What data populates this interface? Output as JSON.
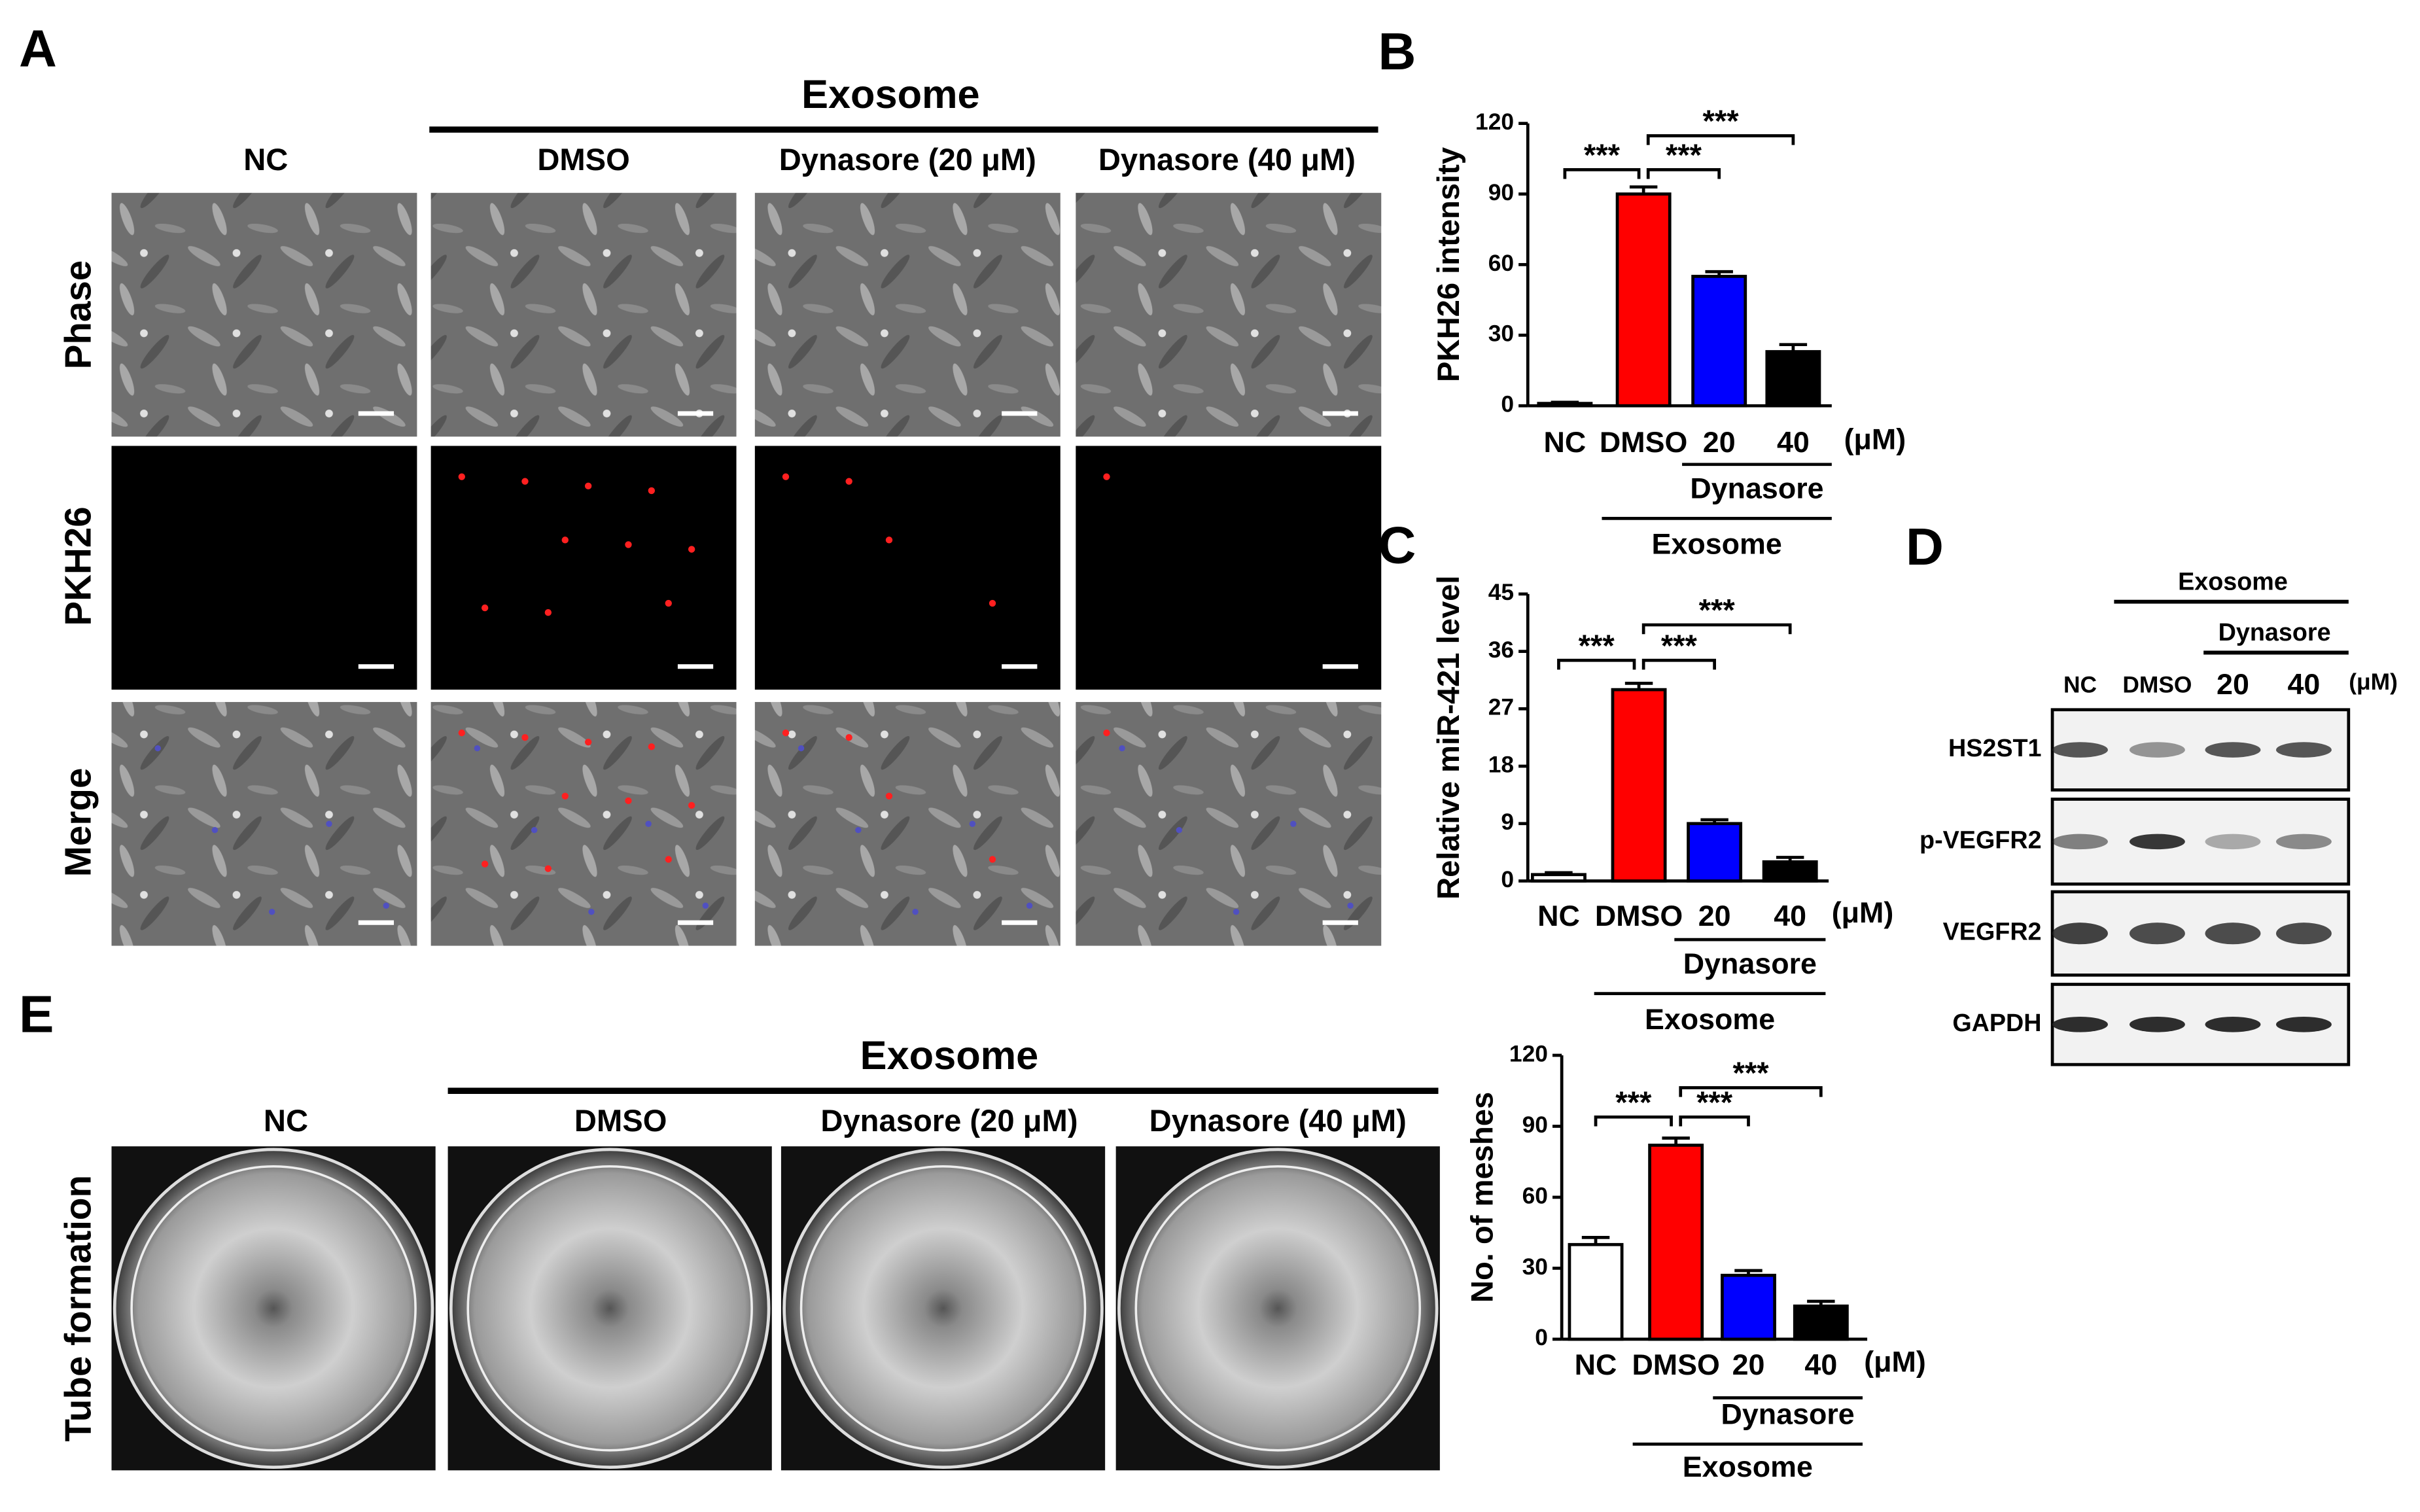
{
  "panel_a": {
    "label": "A",
    "group": "Exosome",
    "columns": [
      "NC",
      "DMSO",
      "Dynasore (20 μM)",
      "Dynasore (40 μM)"
    ],
    "rows": [
      "Phase",
      "PKH26",
      "Merge"
    ]
  },
  "chart_data": [
    {
      "type": "bar",
      "panel": "B",
      "ylabel": "PKH26 intensity",
      "categories": [
        "NC",
        "DMSO",
        "20",
        "40"
      ],
      "unit": "(μM)",
      "subgroup": "Dynasore",
      "group": "Exosome",
      "values": [
        1,
        90,
        55,
        23
      ],
      "errors": [
        0.5,
        3,
        2,
        3
      ],
      "colors": [
        "#ffffff",
        "#ff0000",
        "#0000ff",
        "#000000"
      ],
      "ylim": [
        0,
        120
      ],
      "yticks": [
        0,
        30,
        60,
        90,
        120
      ],
      "significance": [
        "***",
        "***",
        "***"
      ]
    },
    {
      "type": "bar",
      "panel": "C",
      "ylabel": "Relative miR-421 level",
      "categories": [
        "NC",
        "DMSO",
        "20",
        "40"
      ],
      "unit": "(μM)",
      "subgroup": "Dynasore",
      "group": "Exosome",
      "values": [
        1,
        30,
        9,
        3
      ],
      "errors": [
        0.3,
        1,
        0.6,
        0.7
      ],
      "colors": [
        "#ffffff",
        "#ff0000",
        "#0000ff",
        "#000000"
      ],
      "ylim": [
        0,
        45
      ],
      "yticks": [
        0,
        9,
        18,
        27,
        36,
        45
      ],
      "significance": [
        "***",
        "***",
        "***"
      ]
    },
    {
      "type": "bar",
      "ylabel": "No. of meshes",
      "categories": [
        "NC",
        "DMSO",
        "20",
        "40"
      ],
      "unit": "(μM)",
      "subgroup": "Dynasore",
      "group": "Exosome",
      "values": [
        40,
        82,
        27,
        14
      ],
      "errors": [
        3,
        3,
        2,
        2
      ],
      "colors": [
        "#ffffff",
        "#ff0000",
        "#0000ff",
        "#000000"
      ],
      "ylim": [
        0,
        120
      ],
      "yticks": [
        0,
        30,
        60,
        90,
        120
      ],
      "significance": [
        "***",
        "***",
        "***"
      ]
    }
  ],
  "panel_d": {
    "label": "D",
    "group": "Exosome",
    "subgroup": "Dynasore",
    "lanes": [
      "NC",
      "DMSO",
      "20",
      "40"
    ],
    "unit": "(μM)",
    "proteins": [
      "HS2ST1",
      "p-VEGFR2",
      "VEGFR2",
      "GAPDH"
    ]
  },
  "panel_e": {
    "label": "E",
    "group": "Exosome",
    "columns": [
      "NC",
      "DMSO",
      "Dynasore (20 μM)",
      "Dynasore (40 μM)"
    ],
    "row": "Tube formation"
  }
}
